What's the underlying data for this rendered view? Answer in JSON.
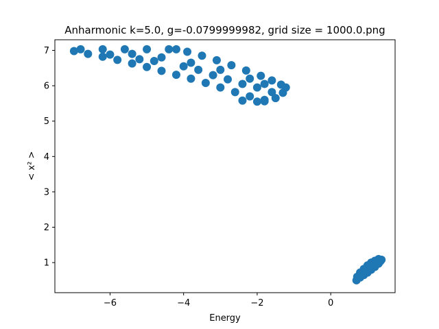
{
  "chart_data": {
    "type": "scatter",
    "title": "Anharmonic  k=5.0, g=-0.0799999982, grid size = 1000.0.png",
    "xlabel": "Energy",
    "ylabel": "< x² >",
    "xlim": [
      -7.5,
      1.75
    ],
    "ylim": [
      0.15,
      7.3
    ],
    "xticks": [
      -6,
      -4,
      -2,
      0
    ],
    "yticks": [
      1,
      2,
      3,
      4,
      5,
      6,
      7
    ],
    "xtick_labels": [
      "−6",
      "−4",
      "−2",
      "0"
    ],
    "ytick_labels": [
      "1",
      "2",
      "3",
      "4",
      "5",
      "6",
      "7"
    ],
    "grid": false,
    "marker_color": "#1f77b4",
    "series": [
      {
        "points": [
          [
            -6.98,
            6.98
          ],
          [
            -6.6,
            6.9
          ],
          [
            -6.2,
            6.82
          ],
          [
            -5.8,
            6.73
          ],
          [
            -5.4,
            6.63
          ],
          [
            -5.0,
            6.53
          ],
          [
            -4.6,
            6.42
          ],
          [
            -4.2,
            6.31
          ],
          [
            -3.8,
            6.2
          ],
          [
            -3.4,
            6.08
          ],
          [
            -3.0,
            5.95
          ],
          [
            -2.6,
            5.82
          ],
          [
            -2.2,
            5.7
          ],
          [
            -1.8,
            5.6
          ],
          [
            -6.8,
            7.03
          ],
          [
            -6.2,
            7.03
          ],
          [
            -5.6,
            7.03
          ],
          [
            -5.0,
            7.03
          ],
          [
            -4.4,
            7.03
          ],
          [
            -4.2,
            7.03
          ],
          [
            -3.9,
            6.96
          ],
          [
            -3.5,
            6.85
          ],
          [
            -3.1,
            6.72
          ],
          [
            -2.7,
            6.58
          ],
          [
            -2.3,
            6.43
          ],
          [
            -1.9,
            6.28
          ],
          [
            -1.6,
            6.15
          ],
          [
            -1.35,
            6.03
          ],
          [
            -1.22,
            5.95
          ],
          [
            -1.3,
            5.8
          ],
          [
            -1.5,
            5.65
          ],
          [
            -1.8,
            5.56
          ],
          [
            -2.0,
            5.55
          ],
          [
            -2.4,
            5.58
          ],
          [
            -6.0,
            6.88
          ],
          [
            -5.2,
            6.75
          ],
          [
            -4.8,
            6.7
          ],
          [
            -4.0,
            6.55
          ],
          [
            -3.6,
            6.45
          ],
          [
            -3.2,
            6.3
          ],
          [
            -2.8,
            6.18
          ],
          [
            -2.4,
            6.05
          ],
          [
            -2.0,
            5.95
          ],
          [
            -1.6,
            5.82
          ],
          [
            -5.4,
            6.9
          ],
          [
            -4.6,
            6.8
          ],
          [
            -3.8,
            6.65
          ],
          [
            -3.0,
            6.45
          ],
          [
            -2.2,
            6.2
          ],
          [
            -1.8,
            6.05
          ],
          [
            0.7,
            0.5
          ],
          [
            0.8,
            0.58
          ],
          [
            0.9,
            0.65
          ],
          [
            1.0,
            0.72
          ],
          [
            1.1,
            0.8
          ],
          [
            1.2,
            0.88
          ],
          [
            1.3,
            0.97
          ],
          [
            1.38,
            1.08
          ],
          [
            1.3,
            1.1
          ],
          [
            1.2,
            1.05
          ],
          [
            1.1,
            1.0
          ],
          [
            1.0,
            0.92
          ],
          [
            0.9,
            0.82
          ],
          [
            0.8,
            0.72
          ],
          [
            0.72,
            0.6
          ],
          [
            0.85,
            0.68
          ],
          [
            0.95,
            0.78
          ],
          [
            1.05,
            0.86
          ],
          [
            1.15,
            0.94
          ],
          [
            1.25,
            1.0
          ],
          [
            1.35,
            1.04
          ]
        ]
      }
    ]
  }
}
